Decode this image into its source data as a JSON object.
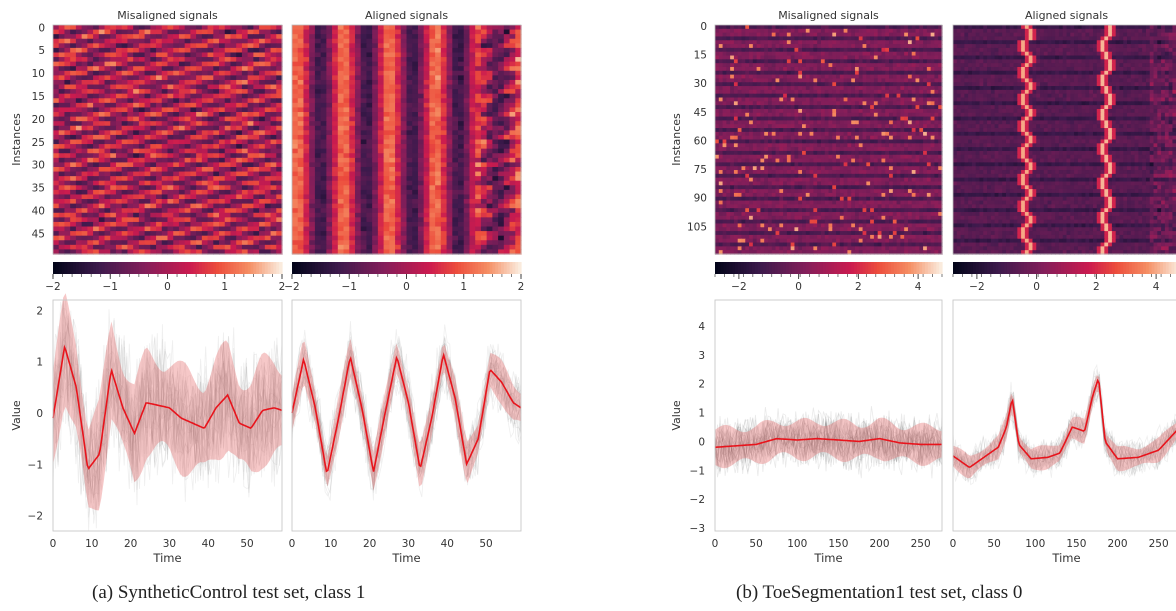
{
  "panels": [
    {
      "caption": "(a)  SyntheticControl test set, class 1",
      "heat_titles": [
        "Misaligned signals",
        "Aligned signals"
      ],
      "heat_ylabel": "Instances",
      "heat_yticks": [
        "0",
        "5",
        "10",
        "15",
        "20",
        "25",
        "30",
        "35",
        "40",
        "45"
      ],
      "colorbar_ticks": [
        "−2",
        "−1",
        "0",
        "1",
        "2"
      ],
      "line_ylabel": "Value",
      "line_xlabel": "Time",
      "line_yticks": [
        "2",
        "1",
        "0",
        "−1",
        "−2"
      ],
      "line_xticks": [
        "0",
        "10",
        "20",
        "30",
        "40",
        "50"
      ]
    },
    {
      "caption": "(b)  ToeSegmentation1 test set, class 0",
      "heat_titles": [
        "Misaligned signals",
        "Aligned signals"
      ],
      "heat_ylabel": "Instances",
      "heat_yticks": [
        "0",
        "15",
        "30",
        "45",
        "60",
        "75",
        "90",
        "105"
      ],
      "colorbar_ticks": [
        "−2",
        "0",
        "2",
        "4"
      ],
      "line_ylabel": "Value",
      "line_xlabel": "Time",
      "line_yticks": [
        "4",
        "3",
        "2",
        "1",
        "0",
        "−1",
        "−2",
        "−3"
      ],
      "line_xticks": [
        "0",
        "50",
        "100",
        "150",
        "200",
        "250"
      ]
    }
  ],
  "chart_data": [
    {
      "type": "line",
      "title": "SyntheticControl test set, class 1",
      "xlabel": "Time",
      "ylabel": "Value",
      "xlim": [
        0,
        59
      ],
      "ylim": [
        -2.3,
        2.2
      ],
      "subplots": [
        {
          "title": "Misaligned signals",
          "x": [
            0,
            3,
            6,
            9,
            12,
            15,
            18,
            21,
            24,
            27,
            30,
            33,
            36,
            39,
            42,
            45,
            48,
            51,
            54,
            57,
            59
          ],
          "mean": [
            -0.1,
            1.3,
            0.5,
            -1.1,
            -0.8,
            0.85,
            0.1,
            -0.4,
            0.2,
            0.15,
            0.1,
            -0.1,
            -0.2,
            -0.3,
            0.1,
            0.35,
            -0.2,
            -0.3,
            0.05,
            0.1,
            0.05
          ],
          "band_halfwidth": 0.9
        },
        {
          "title": "Aligned signals",
          "x": [
            0,
            3,
            6,
            9,
            12,
            15,
            18,
            21,
            24,
            27,
            30,
            33,
            36,
            39,
            42,
            45,
            48,
            51,
            54,
            57,
            59
          ],
          "mean": [
            0.0,
            1.05,
            0.1,
            -1.2,
            -0.1,
            1.1,
            0.1,
            -1.15,
            0.0,
            1.1,
            0.2,
            -1.1,
            -0.1,
            1.15,
            0.3,
            -1.0,
            -0.5,
            0.85,
            0.6,
            0.2,
            0.1
          ],
          "band_halfwidth": 0.35
        }
      ]
    },
    {
      "type": "line",
      "title": "ToeSegmentation1 test set, class 0",
      "xlabel": "Time",
      "ylabel": "Value",
      "xlim": [
        0,
        276
      ],
      "ylim": [
        -3.1,
        4.9
      ],
      "subplots": [
        {
          "title": "Misaligned signals",
          "x": [
            0,
            25,
            50,
            75,
            100,
            125,
            150,
            175,
            200,
            225,
            250,
            276
          ],
          "mean": [
            -0.2,
            -0.15,
            -0.1,
            0.1,
            0.05,
            0.1,
            0.05,
            0.0,
            0.1,
            -0.05,
            -0.1,
            -0.1
          ],
          "band_halfwidth": 0.6
        },
        {
          "title": "Aligned signals",
          "x": [
            0,
            20,
            40,
            55,
            65,
            72,
            80,
            95,
            115,
            130,
            145,
            160,
            170,
            177,
            185,
            200,
            225,
            250,
            276
          ],
          "mean": [
            -0.5,
            -0.9,
            -0.5,
            -0.2,
            0.5,
            1.5,
            -0.1,
            -0.6,
            -0.55,
            -0.4,
            0.5,
            0.35,
            1.6,
            2.2,
            0.0,
            -0.6,
            -0.55,
            -0.3,
            0.5
          ],
          "band_halfwidth": 0.35
        }
      ]
    }
  ]
}
